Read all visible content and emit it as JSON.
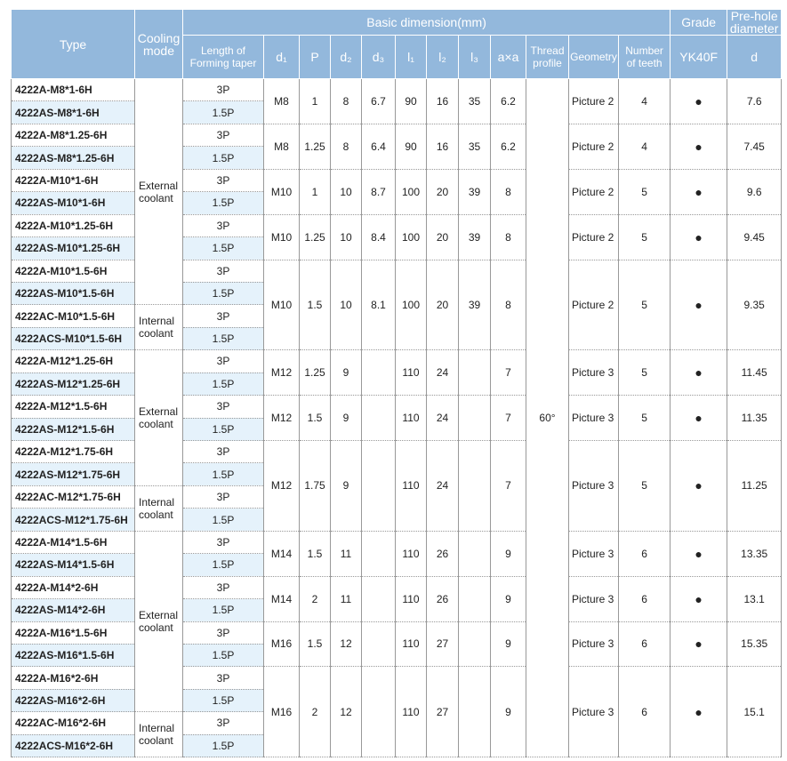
{
  "header": {
    "type": "Type",
    "cooling": "Cooling mode",
    "basic": "Basic dimension(mm)",
    "grade": "Grade",
    "prehole": "Pre-hole diameter",
    "columns": [
      "Length of Forming taper",
      "d₁",
      "P",
      "d₂",
      "d₃",
      "l₁",
      "l₂",
      "l₃",
      "a×a",
      "Thread profile",
      "Geometry",
      "Number of teeth"
    ],
    "grade_sub": "YK40F",
    "prehole_sub": "d"
  },
  "thread_profile": "60°",
  "rows": [
    {
      "type": "4222A-M8*1-6H",
      "taper": "3P",
      "cooling": "External coolant",
      "dims": {
        "d1": "M8",
        "P": 1,
        "d2": 8,
        "d3": 6.7,
        "l1": 90,
        "l2": 16,
        "l3": 35,
        "axa": 6.2,
        "geometry": "Picture 2",
        "teeth": 4,
        "grade": "●",
        "d": 7.6
      }
    },
    {
      "type": "4222AS-M8*1-6H",
      "taper": "1.5P"
    },
    {
      "type": "4222A-M8*1.25-6H",
      "taper": "3P",
      "dims": {
        "d1": "M8",
        "P": 1.25,
        "d2": 8,
        "d3": 6.4,
        "l1": 90,
        "l2": 16,
        "l3": 35,
        "axa": 6.2,
        "geometry": "Picture 2",
        "teeth": 4,
        "grade": "●",
        "d": 7.45
      }
    },
    {
      "type": "4222AS-M8*1.25-6H",
      "taper": "1.5P"
    },
    {
      "type": "4222A-M10*1-6H",
      "taper": "3P",
      "dims": {
        "d1": "M10",
        "P": 1,
        "d2": 10,
        "d3": 8.7,
        "l1": 100,
        "l2": 20,
        "l3": 39,
        "axa": 8,
        "geometry": "Picture 2",
        "teeth": 5,
        "grade": "●",
        "d": 9.6
      }
    },
    {
      "type": "4222AS-M10*1-6H",
      "taper": "1.5P"
    },
    {
      "type": "4222A-M10*1.25-6H",
      "taper": "3P",
      "dims": {
        "d1": "M10",
        "P": 1.25,
        "d2": 10,
        "d3": 8.4,
        "l1": 100,
        "l2": 20,
        "l3": 39,
        "axa": 8,
        "geometry": "Picture 2",
        "teeth": 5,
        "grade": "●",
        "d": 9.45
      }
    },
    {
      "type": "4222AS-M10*1.25-6H",
      "taper": "1.5P"
    },
    {
      "type": "4222A-M10*1.5-6H",
      "taper": "3P",
      "dims": {
        "d1": "M10",
        "P": 1.5,
        "d2": 10,
        "d3": 8.1,
        "l1": 100,
        "l2": 20,
        "l3": 39,
        "axa": 8,
        "geometry": "Picture 2",
        "teeth": 5,
        "grade": "●",
        "d": 9.35
      }
    },
    {
      "type": "4222AS-M10*1.5-6H",
      "taper": "1.5P"
    },
    {
      "type": "4222AC-M10*1.5-6H",
      "taper": "3P",
      "cooling": "Internal coolant"
    },
    {
      "type": "4222ACS-M10*1.5-6H",
      "taper": "1.5P"
    },
    {
      "type": "4222A-M12*1.25-6H",
      "taper": "3P",
      "cooling": "External coolant",
      "dims": {
        "d1": "M12",
        "P": 1.25,
        "d2": 9,
        "l1": 110,
        "l2": 24,
        "axa": 7,
        "geometry": "Picture 3",
        "teeth": 5,
        "grade": "●",
        "d": 11.45
      }
    },
    {
      "type": "4222AS-M12*1.25-6H",
      "taper": "1.5P"
    },
    {
      "type": "4222A-M12*1.5-6H",
      "taper": "3P",
      "dims": {
        "d1": "M12",
        "P": 1.5,
        "d2": 9,
        "l1": 110,
        "l2": 24,
        "axa": 7,
        "geometry": "Picture 3",
        "teeth": 5,
        "grade": "●",
        "d": 11.35
      }
    },
    {
      "type": "4222AS-M12*1.5-6H",
      "taper": "1.5P"
    },
    {
      "type": "4222A-M12*1.75-6H",
      "taper": "3P",
      "dims": {
        "d1": "M12",
        "P": 1.75,
        "d2": 9,
        "l1": 110,
        "l2": 24,
        "axa": 7,
        "geometry": "Picture 3",
        "teeth": 5,
        "grade": "●",
        "d": 11.25
      }
    },
    {
      "type": "4222AS-M12*1.75-6H",
      "taper": "1.5P"
    },
    {
      "type": "4222AC-M12*1.75-6H",
      "taper": "3P",
      "cooling": "Internal coolant"
    },
    {
      "type": "4222ACS-M12*1.75-6H",
      "taper": "1.5P"
    },
    {
      "type": "4222A-M14*1.5-6H",
      "taper": "3P",
      "cooling": "External coolant",
      "dims": {
        "d1": "M14",
        "P": 1.5,
        "d2": 11,
        "l1": 110,
        "l2": 26,
        "axa": 9,
        "geometry": "Picture 3",
        "teeth": 6,
        "grade": "●",
        "d": 13.35
      }
    },
    {
      "type": "4222AS-M14*1.5-6H",
      "taper": "1.5P"
    },
    {
      "type": "4222A-M14*2-6H",
      "taper": "3P",
      "dims": {
        "d1": "M14",
        "P": 2,
        "d2": 11,
        "l1": 110,
        "l2": 26,
        "axa": 9,
        "geometry": "Picture 3",
        "teeth": 6,
        "grade": "●",
        "d": 13.1
      }
    },
    {
      "type": "4222AS-M14*2-6H",
      "taper": "1.5P"
    },
    {
      "type": "4222A-M16*1.5-6H",
      "taper": "3P",
      "dims": {
        "d1": "M16",
        "P": 1.5,
        "d2": 12,
        "l1": 110,
        "l2": 27,
        "axa": 9,
        "geometry": "Picture 3",
        "teeth": 6,
        "grade": "●",
        "d": 15.35
      }
    },
    {
      "type": "4222AS-M16*1.5-6H",
      "taper": "1.5P"
    },
    {
      "type": "4222A-M16*2-6H",
      "taper": "3P",
      "dims": {
        "d1": "M16",
        "P": 2,
        "d2": 12,
        "l1": 110,
        "l2": 27,
        "axa": 9,
        "geometry": "Picture 3",
        "teeth": 6,
        "grade": "●",
        "d": 15.1
      }
    },
    {
      "type": "4222AS-M16*2-6H",
      "taper": "1.5P"
    },
    {
      "type": "4222AC-M16*2-6H",
      "taper": "3P",
      "cooling": "Internal coolant"
    },
    {
      "type": "4222ACS-M16*2-6H",
      "taper": "1.5P"
    }
  ]
}
